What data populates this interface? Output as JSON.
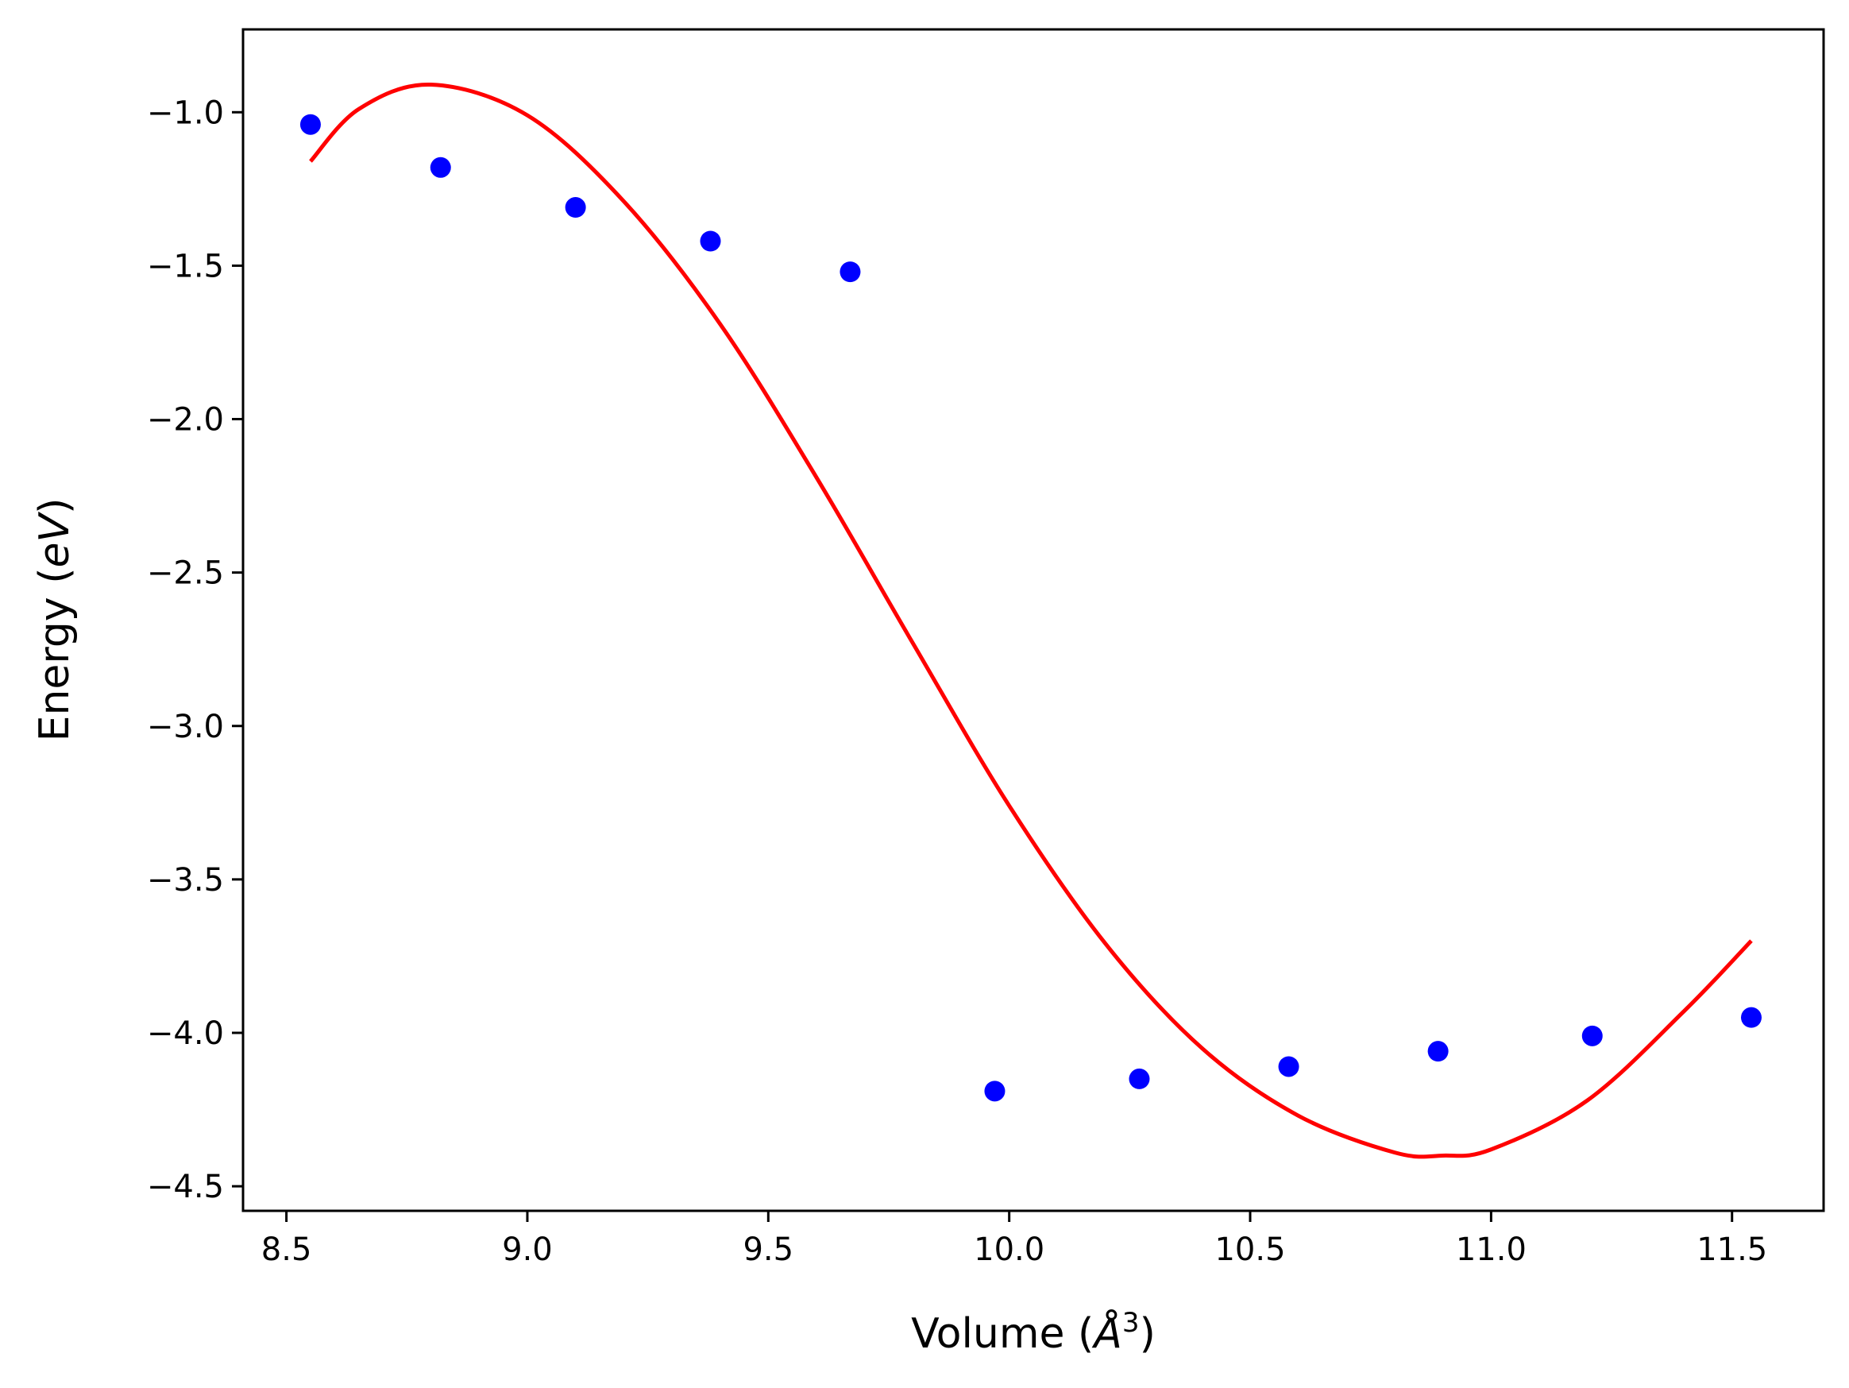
{
  "chart_data": {
    "type": "scatter",
    "xlabel": {
      "prefix": "Volume (",
      "symbol": "Å",
      "sup": "3",
      "suffix": ")"
    },
    "ylabel": {
      "prefix": "Energy (",
      "symbol": "eV",
      "suffix": ")"
    },
    "xlim": [
      8.41,
      11.69
    ],
    "ylim": [
      -4.58,
      -0.73
    ],
    "xticks": [
      8.5,
      9.0,
      9.5,
      10.0,
      10.5,
      11.0,
      11.5
    ],
    "xtick_labels": [
      "8.5",
      "9.0",
      "9.5",
      "10.0",
      "10.5",
      "11.0",
      "11.5"
    ],
    "yticks": [
      -1.0,
      -1.5,
      -2.0,
      -2.5,
      -3.0,
      -3.5,
      -4.0,
      -4.5
    ],
    "ytick_labels": [
      "−1.0",
      "−1.5",
      "−2.0",
      "−2.5",
      "−3.0",
      "−3.5",
      "−4.0",
      "−4.5"
    ],
    "grid": false,
    "series": [
      {
        "kind": "scatter",
        "color": "#0000ff",
        "x": [
          8.55,
          8.82,
          9.1,
          9.38,
          9.67,
          9.97,
          10.27,
          10.58,
          10.89,
          11.21,
          11.54
        ],
        "y": [
          -1.04,
          -1.18,
          -1.31,
          -1.42,
          -1.52,
          -4.19,
          -4.15,
          -4.11,
          -4.06,
          -4.01,
          -3.95
        ]
      },
      {
        "kind": "line",
        "color": "#ff0000",
        "x": [
          8.55,
          8.65,
          8.8,
          9.0,
          9.2,
          9.4,
          9.6,
          9.8,
          10.0,
          10.2,
          10.4,
          10.6,
          10.8,
          10.9,
          11.0,
          11.2,
          11.4,
          11.54
        ],
        "y": [
          -1.16,
          -0.99,
          -0.91,
          -1.01,
          -1.29,
          -1.69,
          -2.19,
          -2.73,
          -3.26,
          -3.71,
          -4.05,
          -4.27,
          -4.39,
          -4.4,
          -4.38,
          -4.22,
          -3.93,
          -3.7
        ]
      }
    ]
  }
}
